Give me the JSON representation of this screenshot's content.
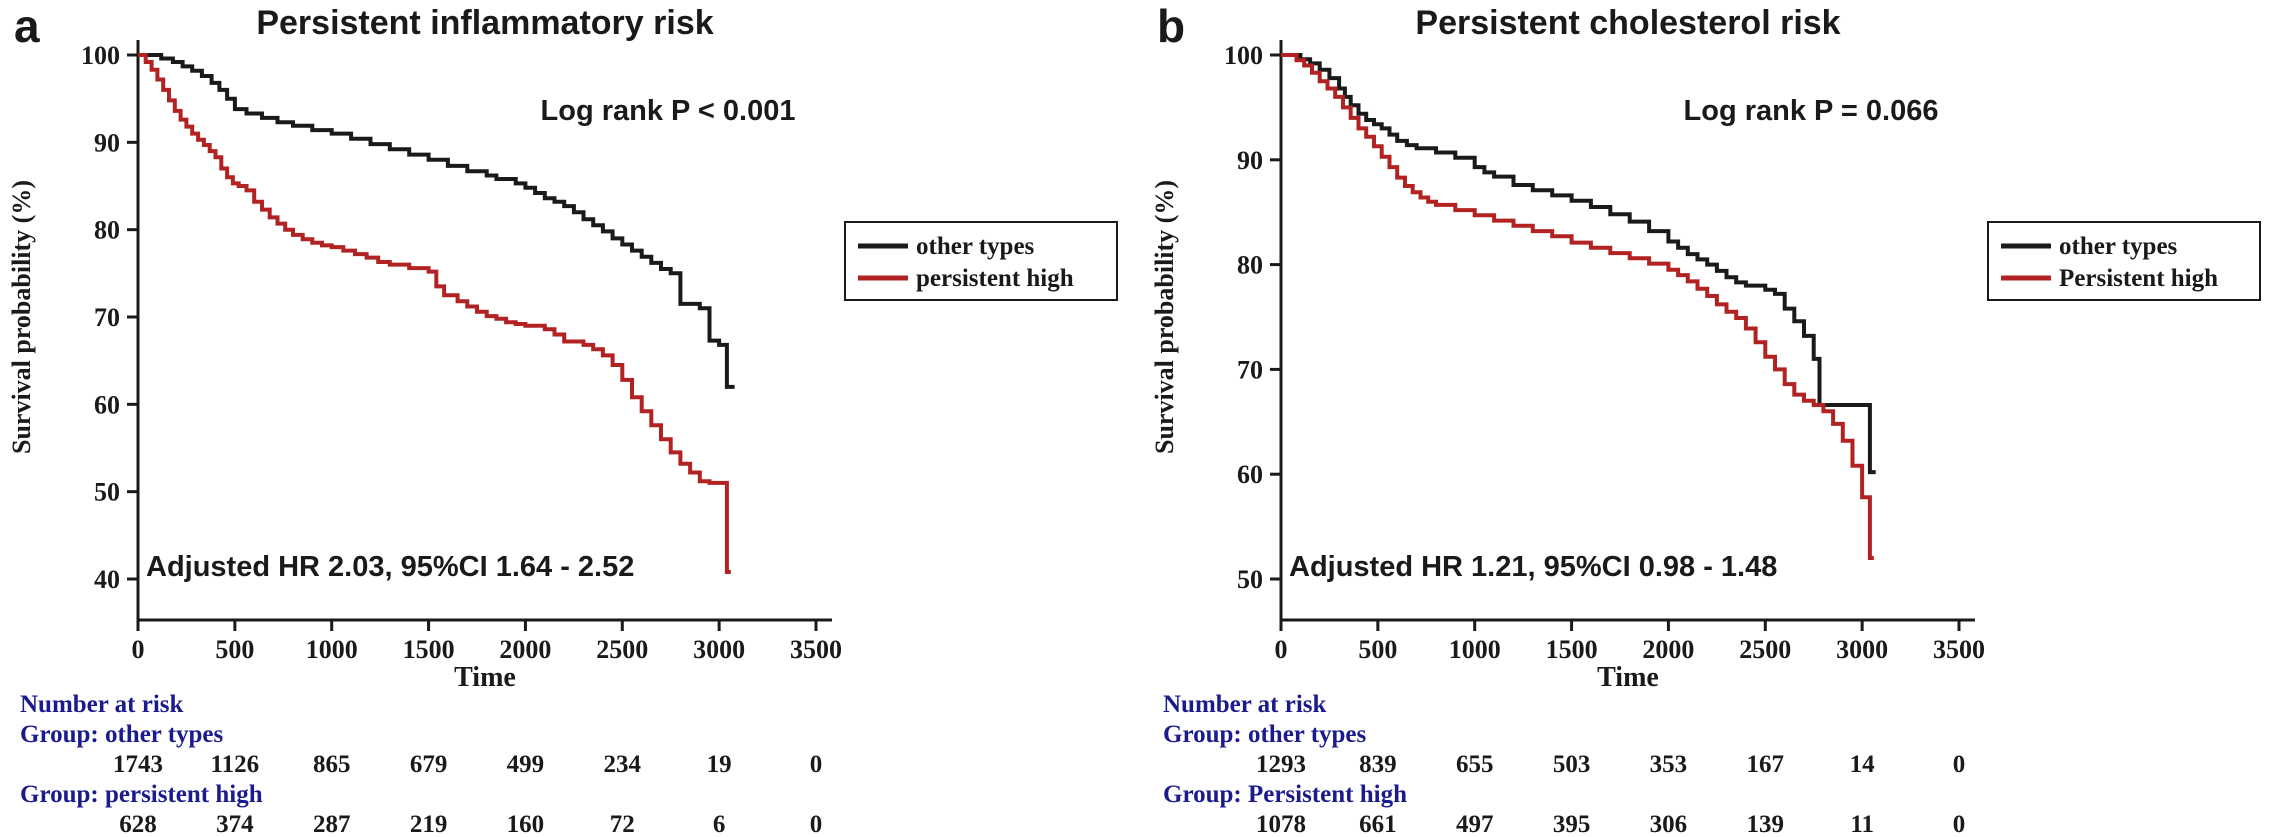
{
  "colors": {
    "axis": "#1a1a1a",
    "series_black": "#1a1a1a",
    "series_red": "#b22222",
    "risk_label_blue": "#1b1b8e",
    "background": "#ffffff"
  },
  "chart_data": [
    {
      "type": "line",
      "chart_kind": "kaplan-meier-step",
      "panel_letter": "a",
      "title": "Persistent inflammatory risk",
      "xlabel": "Time",
      "ylabel": "Survival probability (%)",
      "xlim": [
        0,
        3500
      ],
      "ylim": [
        40,
        100
      ],
      "x_ticks": [
        0,
        500,
        1000,
        1500,
        2000,
        2500,
        3000,
        3500
      ],
      "y_ticks": [
        100,
        90,
        80,
        70,
        60,
        50,
        40
      ],
      "grid": false,
      "legend_position": "right",
      "annotations": {
        "log_rank": "Log rank P < 0.001",
        "hazard_ratio": "Adjusted HR 2.03, 95%CI 1.64 - 2.52"
      },
      "legend": [
        {
          "label": "other types",
          "color": "#1a1a1a"
        },
        {
          "label": "persistent high",
          "color": "#b22222"
        }
      ],
      "series": [
        {
          "name": "other types",
          "color": "#1a1a1a",
          "points": [
            [
              0,
              100
            ],
            [
              120,
              99.6
            ],
            [
              180,
              99.2
            ],
            [
              230,
              98.7
            ],
            [
              280,
              98.2
            ],
            [
              330,
              97.6
            ],
            [
              380,
              96.8
            ],
            [
              420,
              96
            ],
            [
              460,
              95
            ],
            [
              500,
              93.8
            ],
            [
              560,
              93.3
            ],
            [
              640,
              92.8
            ],
            [
              720,
              92.3
            ],
            [
              800,
              91.9
            ],
            [
              900,
              91.4
            ],
            [
              1000,
              91
            ],
            [
              1100,
              90.4
            ],
            [
              1200,
              89.8
            ],
            [
              1300,
              89.2
            ],
            [
              1400,
              88.6
            ],
            [
              1500,
              88
            ],
            [
              1600,
              87.3
            ],
            [
              1700,
              86.7
            ],
            [
              1800,
              86.2
            ],
            [
              1850,
              85.8
            ],
            [
              1950,
              85.3
            ],
            [
              2000,
              84.8
            ],
            [
              2050,
              84.2
            ],
            [
              2100,
              83.6
            ],
            [
              2150,
              83.2
            ],
            [
              2200,
              82.7
            ],
            [
              2250,
              82
            ],
            [
              2300,
              81.2
            ],
            [
              2350,
              80.5
            ],
            [
              2400,
              79.8
            ],
            [
              2450,
              79
            ],
            [
              2500,
              78.3
            ],
            [
              2550,
              77.6
            ],
            [
              2600,
              76.9
            ],
            [
              2650,
              76.2
            ],
            [
              2700,
              75.5
            ],
            [
              2750,
              75
            ],
            [
              2800,
              71.5
            ],
            [
              2900,
              71
            ],
            [
              2950,
              67.3
            ],
            [
              3000,
              66.8
            ],
            [
              3040,
              62
            ],
            [
              3080,
              62
            ]
          ]
        },
        {
          "name": "persistent high",
          "color": "#b22222",
          "points": [
            [
              0,
              100
            ],
            [
              40,
              99.2
            ],
            [
              70,
              98.3
            ],
            [
              100,
              97.2
            ],
            [
              130,
              96
            ],
            [
              160,
              94.8
            ],
            [
              190,
              93.6
            ],
            [
              220,
              92.6
            ],
            [
              250,
              91.8
            ],
            [
              280,
              91
            ],
            [
              310,
              90.3
            ],
            [
              340,
              89.7
            ],
            [
              370,
              89
            ],
            [
              400,
              88.3
            ],
            [
              430,
              87
            ],
            [
              460,
              86
            ],
            [
              490,
              85.3
            ],
            [
              520,
              85
            ],
            [
              560,
              84.5
            ],
            [
              600,
              83.2
            ],
            [
              640,
              82.3
            ],
            [
              680,
              81.4
            ],
            [
              720,
              80.7
            ],
            [
              760,
              80
            ],
            [
              800,
              79.4
            ],
            [
              850,
              78.9
            ],
            [
              900,
              78.5
            ],
            [
              950,
              78.2
            ],
            [
              1000,
              78
            ],
            [
              1060,
              77.6
            ],
            [
              1120,
              77.2
            ],
            [
              1180,
              76.8
            ],
            [
              1240,
              76.3
            ],
            [
              1300,
              76
            ],
            [
              1400,
              75.6
            ],
            [
              1500,
              75.2
            ],
            [
              1540,
              73.5
            ],
            [
              1580,
              72.5
            ],
            [
              1650,
              71.8
            ],
            [
              1700,
              71.2
            ],
            [
              1750,
              70.6
            ],
            [
              1800,
              70.1
            ],
            [
              1850,
              69.8
            ],
            [
              1900,
              69.4
            ],
            [
              1950,
              69.2
            ],
            [
              2000,
              69
            ],
            [
              2100,
              68.6
            ],
            [
              2150,
              68
            ],
            [
              2200,
              67.2
            ],
            [
              2300,
              66.8
            ],
            [
              2350,
              66.3
            ],
            [
              2400,
              65.6
            ],
            [
              2450,
              64.5
            ],
            [
              2500,
              62.8
            ],
            [
              2550,
              60.8
            ],
            [
              2600,
              59.2
            ],
            [
              2650,
              57.6
            ],
            [
              2700,
              56
            ],
            [
              2750,
              54.5
            ],
            [
              2800,
              53.2
            ],
            [
              2850,
              52.2
            ],
            [
              2900,
              51.2
            ],
            [
              2950,
              51
            ],
            [
              3030,
              51
            ],
            [
              3040,
              40.8
            ],
            [
              3060,
              40.8
            ]
          ]
        }
      ],
      "number_at_risk": {
        "header": "Number at risk",
        "groups": [
          {
            "label": "Group: other types",
            "values": [
              1743,
              1126,
              865,
              679,
              499,
              234,
              19,
              0
            ]
          },
          {
            "label": "Group: persistent high",
            "values": [
              628,
              374,
              287,
              219,
              160,
              72,
              6,
              0
            ]
          }
        ]
      }
    },
    {
      "type": "line",
      "chart_kind": "kaplan-meier-step",
      "panel_letter": "b",
      "title": "Persistent cholesterol risk",
      "xlabel": "Time",
      "ylabel": "Survival probability (%)",
      "xlim": [
        0,
        3500
      ],
      "ylim": [
        50,
        100
      ],
      "x_ticks": [
        0,
        500,
        1000,
        1500,
        2000,
        2500,
        3000,
        3500
      ],
      "y_ticks": [
        100,
        90,
        80,
        70,
        60,
        50
      ],
      "grid": false,
      "legend_position": "right",
      "annotations": {
        "log_rank": "Log rank P = 0.066",
        "hazard_ratio": "Adjusted HR 1.21, 95%CI 0.98 - 1.48"
      },
      "legend": [
        {
          "label": "other types",
          "color": "#1a1a1a"
        },
        {
          "label": "Persistent high",
          "color": "#b22222"
        }
      ],
      "series": [
        {
          "name": "other types",
          "color": "#1a1a1a",
          "points": [
            [
              0,
              100
            ],
            [
              100,
              99.6
            ],
            [
              150,
              99.2
            ],
            [
              200,
              98.6
            ],
            [
              250,
              97.8
            ],
            [
              300,
              96.8
            ],
            [
              330,
              96
            ],
            [
              360,
              95.2
            ],
            [
              400,
              94.4
            ],
            [
              440,
              93.8
            ],
            [
              480,
              93.4
            ],
            [
              520,
              93
            ],
            [
              560,
              92.4
            ],
            [
              600,
              91.8
            ],
            [
              650,
              91.4
            ],
            [
              700,
              91.1
            ],
            [
              800,
              90.7
            ],
            [
              900,
              90.2
            ],
            [
              1000,
              89.3
            ],
            [
              1050,
              88.8
            ],
            [
              1100,
              88.4
            ],
            [
              1200,
              87.6
            ],
            [
              1300,
              87.1
            ],
            [
              1400,
              86.6
            ],
            [
              1500,
              86.1
            ],
            [
              1600,
              85.5
            ],
            [
              1700,
              84.8
            ],
            [
              1800,
              84.1
            ],
            [
              1900,
              83.2
            ],
            [
              2000,
              82.2
            ],
            [
              2050,
              81.6
            ],
            [
              2100,
              81
            ],
            [
              2150,
              80.5
            ],
            [
              2200,
              80
            ],
            [
              2250,
              79.4
            ],
            [
              2300,
              78.8
            ],
            [
              2350,
              78.3
            ],
            [
              2400,
              78
            ],
            [
              2500,
              77.6
            ],
            [
              2550,
              77.2
            ],
            [
              2600,
              75.8
            ],
            [
              2650,
              74.6
            ],
            [
              2700,
              73.2
            ],
            [
              2750,
              71
            ],
            [
              2780,
              66.6
            ],
            [
              3000,
              66.6
            ],
            [
              3040,
              60.2
            ],
            [
              3070,
              60.2
            ]
          ]
        },
        {
          "name": "Persistent high",
          "color": "#b22222",
          "points": [
            [
              0,
              100
            ],
            [
              80,
              99.5
            ],
            [
              120,
              99
            ],
            [
              160,
              98.3
            ],
            [
              200,
              97.5
            ],
            [
              240,
              96.8
            ],
            [
              280,
              96
            ],
            [
              320,
              95
            ],
            [
              360,
              94
            ],
            [
              400,
              93
            ],
            [
              440,
              92.2
            ],
            [
              480,
              91.3
            ],
            [
              520,
              90.3
            ],
            [
              560,
              89.3
            ],
            [
              600,
              88.3
            ],
            [
              640,
              87.5
            ],
            [
              680,
              86.9
            ],
            [
              720,
              86.4
            ],
            [
              760,
              86
            ],
            [
              800,
              85.7
            ],
            [
              900,
              85.2
            ],
            [
              1000,
              84.7
            ],
            [
              1100,
              84.2
            ],
            [
              1200,
              83.7
            ],
            [
              1300,
              83.2
            ],
            [
              1400,
              82.7
            ],
            [
              1500,
              82.1
            ],
            [
              1600,
              81.6
            ],
            [
              1700,
              81.1
            ],
            [
              1800,
              80.6
            ],
            [
              1900,
              80.1
            ],
            [
              2000,
              79.5
            ],
            [
              2050,
              79
            ],
            [
              2100,
              78.4
            ],
            [
              2150,
              77.7
            ],
            [
              2200,
              77
            ],
            [
              2250,
              76.2
            ],
            [
              2300,
              75.5
            ],
            [
              2350,
              74.9
            ],
            [
              2400,
              73.9
            ],
            [
              2450,
              72.6
            ],
            [
              2500,
              71.2
            ],
            [
              2550,
              70
            ],
            [
              2600,
              68.6
            ],
            [
              2650,
              67.6
            ],
            [
              2700,
              67
            ],
            [
              2750,
              66.6
            ],
            [
              2800,
              66
            ],
            [
              2850,
              64.8
            ],
            [
              2900,
              63.2
            ],
            [
              2950,
              60.8
            ],
            [
              3000,
              57.8
            ],
            [
              3030,
              57.8
            ],
            [
              3040,
              52
            ],
            [
              3060,
              52
            ]
          ]
        }
      ],
      "number_at_risk": {
        "header": "Number at risk",
        "groups": [
          {
            "label": "Group: other types",
            "values": [
              1293,
              839,
              655,
              503,
              353,
              167,
              14,
              0
            ]
          },
          {
            "label": "Group: Persistent high",
            "values": [
              1078,
              661,
              497,
              395,
              306,
              139,
              11,
              0
            ]
          }
        ]
      }
    }
  ]
}
